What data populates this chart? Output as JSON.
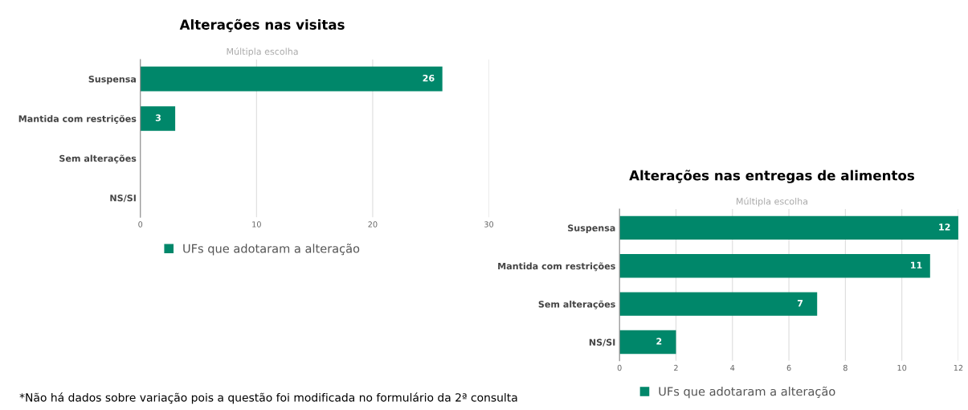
{
  "chart_data": [
    {
      "type": "bar",
      "orientation": "horizontal",
      "title": "Alterações nas visitas",
      "subtitle": "Múltipla escolha",
      "categories": [
        "Suspensa",
        "Mantida com restrições",
        "Sem alterações",
        "NS/SI"
      ],
      "series": [
        {
          "name": "UFs que adotaram a alteração",
          "color": "#00876a",
          "values": [
            26,
            3,
            0,
            0
          ],
          "value_labels": [
            "26",
            "3",
            null,
            null
          ]
        }
      ],
      "xlim": [
        0,
        30
      ],
      "xticks": [
        0,
        10,
        20,
        30
      ],
      "grid": "x",
      "legend": "bottom",
      "annotations": [
        "*Não há dados sobre variação pois a questão foi modificada no formulário da 2ª consulta"
      ]
    },
    {
      "type": "bar",
      "orientation": "horizontal",
      "title": "Alterações nas entregas de alimentos",
      "subtitle": "Múltipla escolha",
      "categories": [
        "Suspensa",
        "Mantida com restrições",
        "Sem alterações",
        "NS/SI"
      ],
      "series": [
        {
          "name": "UFs que adotaram a alteração",
          "color": "#00876a",
          "values": [
            12,
            11,
            7,
            2
          ],
          "value_labels": [
            "12",
            "11",
            "7",
            "2"
          ]
        }
      ],
      "xlim": [
        0,
        12
      ],
      "xticks": [
        0,
        2,
        4,
        6,
        8,
        10,
        12
      ],
      "grid": "x",
      "legend": "bottom"
    }
  ]
}
